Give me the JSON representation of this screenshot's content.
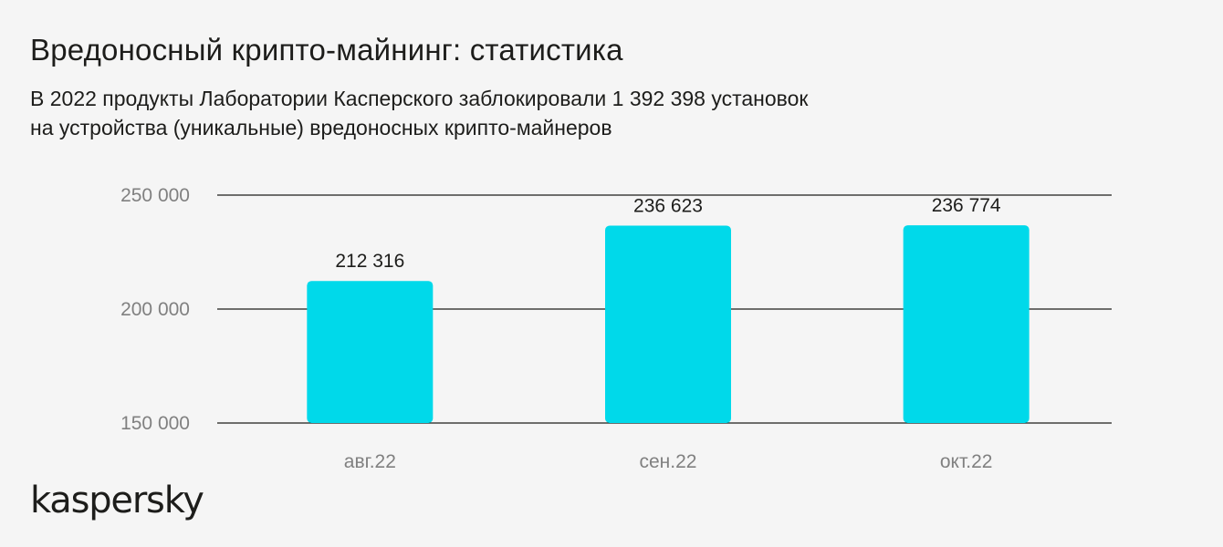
{
  "header": {
    "title": "Вредоносный крипто-майнинг: статистика",
    "subtitle_lines": [
      "В 2022 продукты Лаборатории Касперского заблокировали 1 392 398 установок",
      "на устройства (уникальные) вредоносных крипто-майнеров"
    ]
  },
  "brand": {
    "logo_text": "kaspersky"
  },
  "colors": {
    "bar": "#00d9ea",
    "gridline": "#1d1d1b",
    "text": "#1d1d1b",
    "muted_text": "#808080",
    "background": "#f5f5f5"
  },
  "chart_data": {
    "type": "bar",
    "title": "Вредоносный крипто-майнинг: статистика",
    "categories": [
      "авг.22",
      "сен.22",
      "окт.22"
    ],
    "values": [
      212316,
      236623,
      236774
    ],
    "value_labels": [
      "212 316",
      "236 623",
      "236 774"
    ],
    "xlabel": "",
    "ylabel": "",
    "ylim": [
      150000,
      250000
    ],
    "yticks": [
      150000,
      200000,
      250000
    ],
    "ytick_labels": [
      "150 000",
      "200 000",
      "250 000"
    ],
    "grid": true,
    "legend": "none"
  }
}
